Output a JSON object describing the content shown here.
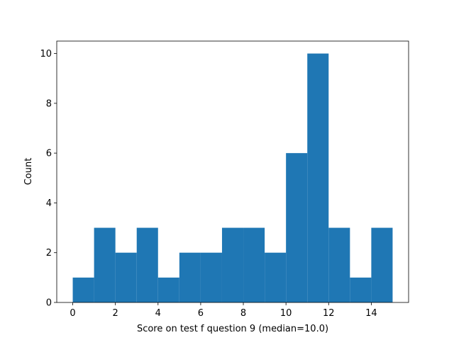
{
  "chart_data": {
    "type": "histogram",
    "x_label": "Score on test f question 9 (median=10.0)",
    "y_label": "Count",
    "bins": [
      0,
      1,
      2,
      3,
      4,
      5,
      6,
      7,
      8,
      9,
      10,
      11,
      12,
      13,
      14,
      15
    ],
    "values": [
      1,
      3,
      2,
      3,
      1,
      2,
      2,
      3,
      3,
      2,
      6,
      10,
      3,
      1,
      3
    ],
    "color": "#1f77b4",
    "xlim": [
      -0.75,
      15.75
    ],
    "xticks": [
      0,
      2,
      4,
      6,
      8,
      10,
      12,
      14
    ],
    "ylim": [
      0,
      10.5
    ],
    "yticks": [
      0,
      2,
      4,
      6,
      8,
      10
    ]
  }
}
